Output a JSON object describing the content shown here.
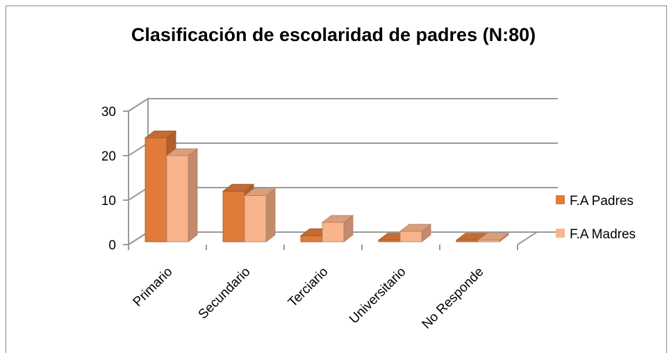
{
  "chart_data": {
    "type": "bar3d",
    "title": "Clasificación de escolaridad de padres (N:80)",
    "categories": [
      "Primario",
      "Secundario",
      "Terciario",
      "Universitario",
      "No Responde"
    ],
    "series": [
      {
        "name": "F.A Padres",
        "color": "#e07b39",
        "values": [
          24,
          12,
          2,
          1,
          1
        ]
      },
      {
        "name": "F.A Madres",
        "color": "#f9b48b",
        "values": [
          20,
          11,
          5,
          3,
          1
        ]
      }
    ],
    "ylim": [
      0,
      30
    ],
    "yticks": [
      0,
      10,
      20,
      30
    ],
    "grid": true,
    "legend": "right"
  }
}
